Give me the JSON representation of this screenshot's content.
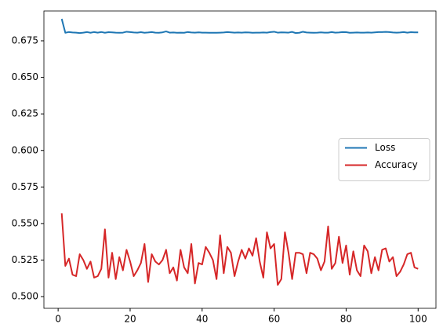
{
  "chart_data": {
    "type": "line",
    "x": [
      1,
      2,
      3,
      4,
      5,
      6,
      7,
      8,
      9,
      10,
      11,
      12,
      13,
      14,
      15,
      16,
      17,
      18,
      19,
      20,
      21,
      22,
      23,
      24,
      25,
      26,
      27,
      28,
      29,
      30,
      31,
      32,
      33,
      34,
      35,
      36,
      37,
      38,
      39,
      40,
      41,
      42,
      43,
      44,
      45,
      46,
      47,
      48,
      49,
      50,
      51,
      52,
      53,
      54,
      55,
      56,
      57,
      58,
      59,
      60,
      61,
      62,
      63,
      64,
      65,
      66,
      67,
      68,
      69,
      70,
      71,
      72,
      73,
      74,
      75,
      76,
      77,
      78,
      79,
      80,
      81,
      82,
      83,
      84,
      85,
      86,
      87,
      88,
      89,
      90,
      91,
      92,
      93,
      94,
      95,
      96,
      97,
      98,
      99,
      100
    ],
    "series": [
      {
        "name": "Loss",
        "color": "#1f77b4",
        "values": [
          0.69,
          0.6805,
          0.681,
          0.6807,
          0.6806,
          0.6803,
          0.6806,
          0.681,
          0.6805,
          0.681,
          0.6806,
          0.681,
          0.6805,
          0.6809,
          0.6808,
          0.6806,
          0.6805,
          0.6806,
          0.6812,
          0.681,
          0.6807,
          0.6806,
          0.6809,
          0.6805,
          0.6807,
          0.681,
          0.6806,
          0.6805,
          0.6808,
          0.6814,
          0.6806,
          0.6807,
          0.6805,
          0.6806,
          0.6805,
          0.681,
          0.6807,
          0.6806,
          0.6808,
          0.6806,
          0.6806,
          0.6805,
          0.6805,
          0.6805,
          0.6806,
          0.6807,
          0.681,
          0.6808,
          0.6806,
          0.6807,
          0.6806,
          0.6808,
          0.6807,
          0.6805,
          0.6806,
          0.6806,
          0.6807,
          0.6806,
          0.681,
          0.6812,
          0.6806,
          0.6808,
          0.6807,
          0.6806,
          0.6811,
          0.6803,
          0.6805,
          0.6812,
          0.6807,
          0.6806,
          0.6805,
          0.6806,
          0.6808,
          0.6806,
          0.6806,
          0.681,
          0.6806,
          0.6807,
          0.681,
          0.6809,
          0.6805,
          0.6806,
          0.6807,
          0.6806,
          0.6806,
          0.6807,
          0.6806,
          0.6808,
          0.681,
          0.681,
          0.6811,
          0.681,
          0.6807,
          0.6806,
          0.6807,
          0.681,
          0.6806,
          0.6809,
          0.6808,
          0.6808
        ]
      },
      {
        "name": "Accuracy",
        "color": "#d62728",
        "values": [
          0.557,
          0.521,
          0.526,
          0.515,
          0.514,
          0.529,
          0.525,
          0.519,
          0.524,
          0.513,
          0.514,
          0.519,
          0.546,
          0.513,
          0.53,
          0.512,
          0.527,
          0.518,
          0.532,
          0.524,
          0.514,
          0.518,
          0.523,
          0.536,
          0.51,
          0.529,
          0.524,
          0.522,
          0.525,
          0.532,
          0.516,
          0.52,
          0.511,
          0.532,
          0.52,
          0.516,
          0.536,
          0.509,
          0.523,
          0.522,
          0.534,
          0.53,
          0.525,
          0.512,
          0.542,
          0.516,
          0.534,
          0.53,
          0.514,
          0.524,
          0.532,
          0.526,
          0.533,
          0.528,
          0.54,
          0.524,
          0.513,
          0.544,
          0.533,
          0.536,
          0.508,
          0.512,
          0.544,
          0.53,
          0.512,
          0.53,
          0.53,
          0.529,
          0.516,
          0.53,
          0.529,
          0.526,
          0.518,
          0.524,
          0.548,
          0.519,
          0.523,
          0.541,
          0.523,
          0.535,
          0.515,
          0.531,
          0.518,
          0.514,
          0.535,
          0.531,
          0.516,
          0.527,
          0.518,
          0.532,
          0.533,
          0.524,
          0.527,
          0.514,
          0.517,
          0.522,
          0.529,
          0.53,
          0.52,
          0.519
        ]
      }
    ],
    "xlim": [
      -3.95,
      104.95
    ],
    "xticks": [
      0,
      20,
      40,
      60,
      80,
      100
    ],
    "ylim": [
      0.492,
      0.6954
    ],
    "yticks": [
      {
        "value": 0.5,
        "label": "0.500"
      },
      0.525,
      {
        "value": 0.55,
        "label": "0.550"
      },
      0.575,
      {
        "value": 0.6,
        "label": "0.600"
      },
      0.625,
      {
        "value": 0.65,
        "label": "0.650"
      },
      0.675
    ],
    "legend": "center right",
    "grid": false
  }
}
